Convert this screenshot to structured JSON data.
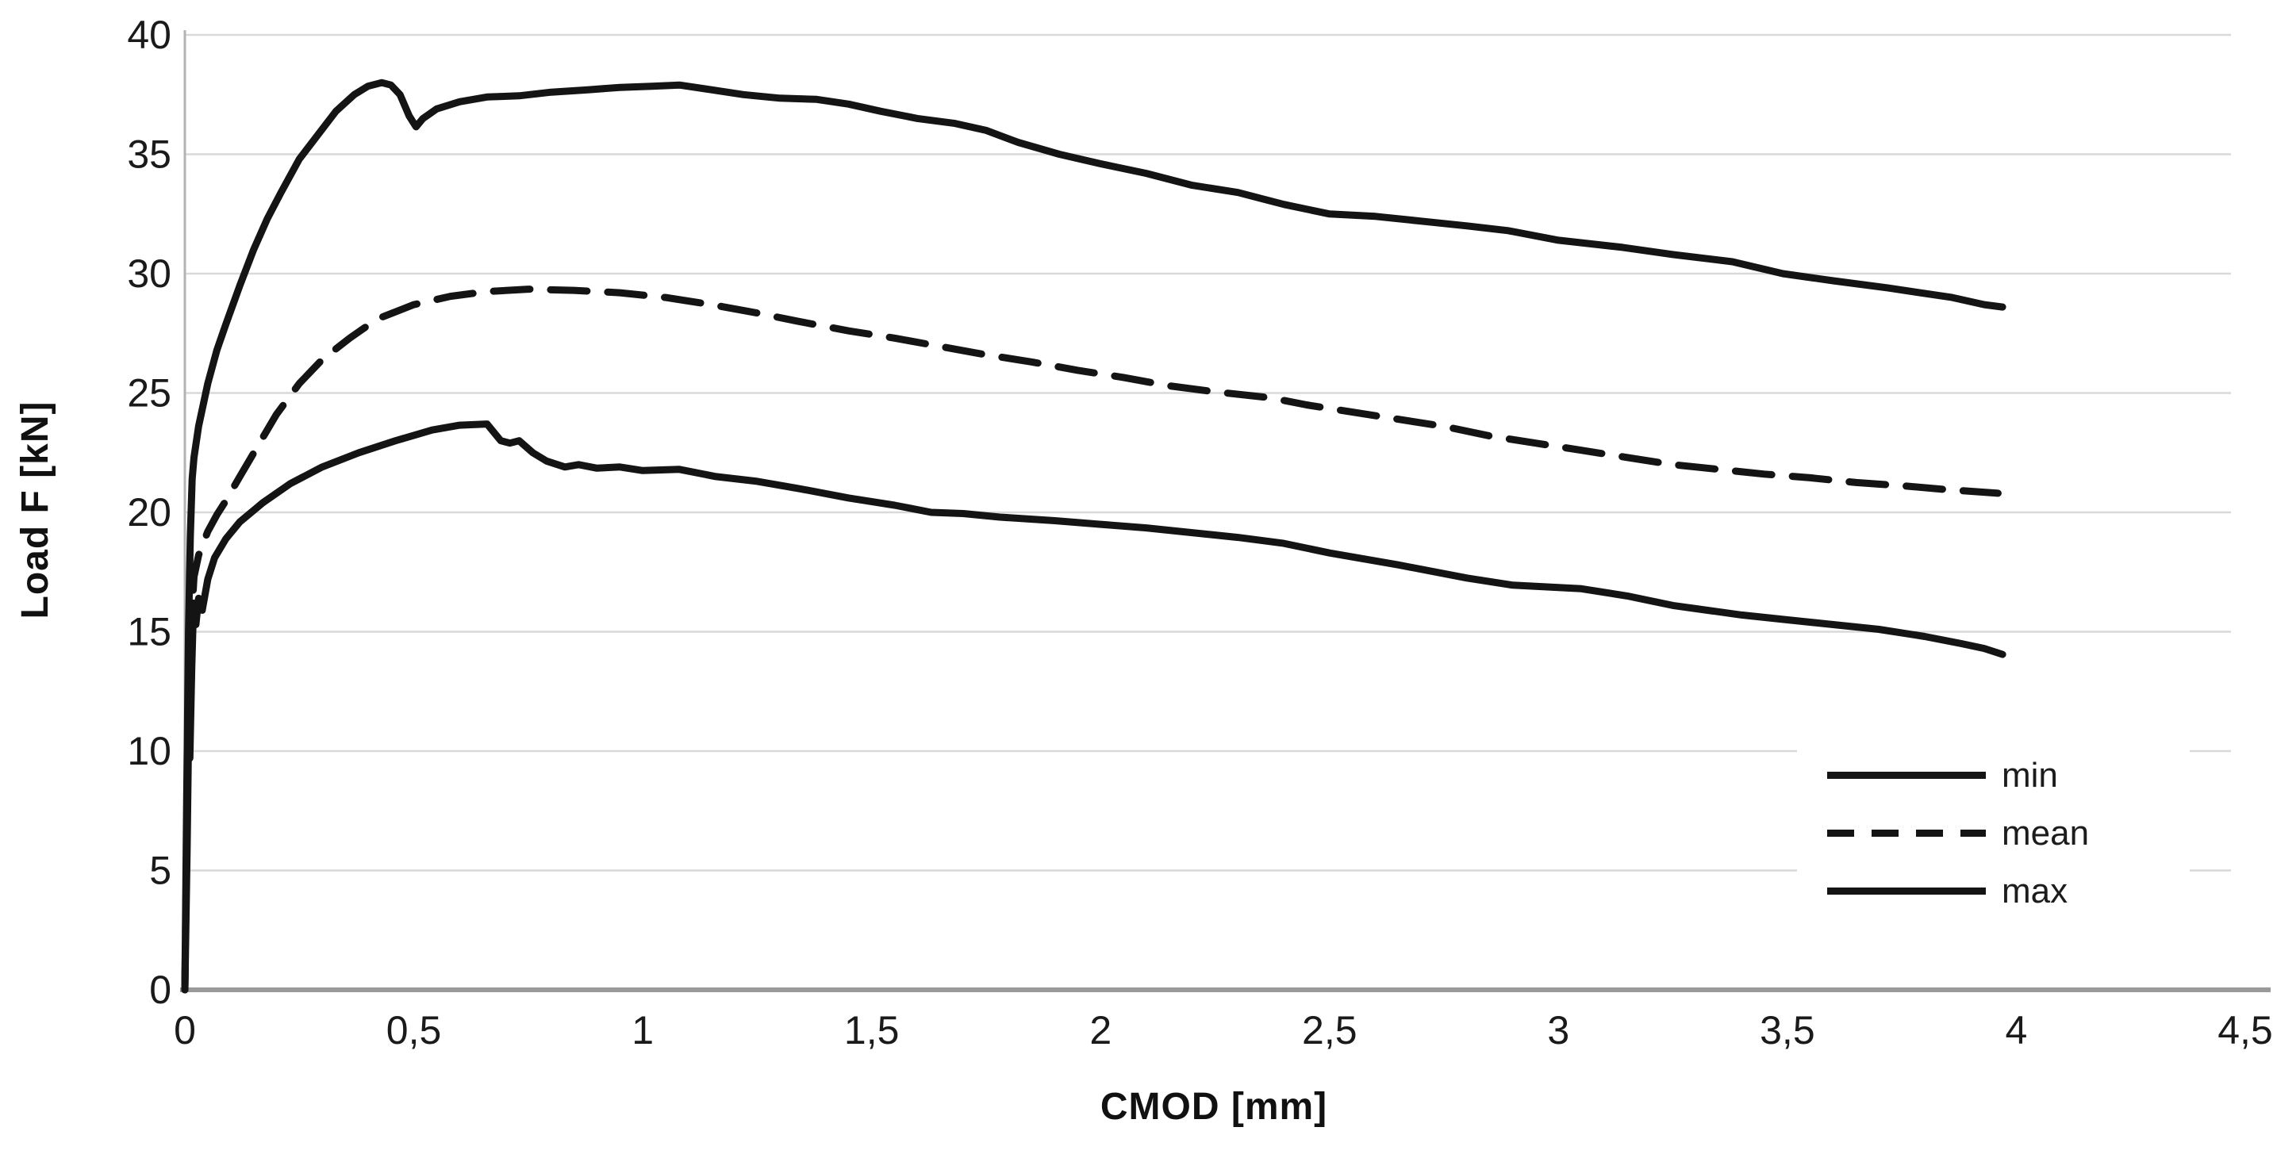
{
  "figure": {
    "x_axis_title": "CMOD [mm]",
    "y_axis_title": "Load F [kN]"
  },
  "legend": {
    "items": [
      {
        "label": "min",
        "line_style": "solid"
      },
      {
        "label": "mean",
        "line_style": "dashed"
      },
      {
        "label": "max",
        "line_style": "solid"
      }
    ]
  },
  "colors": {
    "curve": "#141414",
    "grid": "#d9d9d9",
    "x_axis": "#9a9a9a",
    "y_axis": "#b3b3b3",
    "tick_text": "#1a1a1a"
  },
  "chart_data": {
    "type": "line",
    "title": "",
    "xlabel": "CMOD [mm]",
    "ylabel": "Load F [kN]",
    "xlim": [
      0,
      4.5
    ],
    "ylim": [
      0,
      40
    ],
    "grid": "horizontal",
    "legend_position": "inside-lower-right",
    "x_ticks": [
      0,
      0.5,
      1,
      1.5,
      2,
      2.5,
      3,
      3.5,
      4,
      4.5
    ],
    "x_tick_labels": [
      "0",
      "0,5",
      "1",
      "1,5",
      "2",
      "2,5",
      "3",
      "3,5",
      "4",
      "4,5"
    ],
    "y_ticks": [
      0,
      5,
      10,
      15,
      20,
      25,
      30,
      35,
      40
    ],
    "y_tick_labels": [
      "0",
      "5",
      "10",
      "15",
      "20",
      "25",
      "30",
      "35",
      "40"
    ],
    "series": [
      {
        "name": "min",
        "style": "solid",
        "points": [
          [
            0,
            0
          ],
          [
            0.005,
            6
          ],
          [
            0.008,
            10.5
          ],
          [
            0.011,
            9.7
          ],
          [
            0.015,
            13.5
          ],
          [
            0.019,
            16.2
          ],
          [
            0.024,
            15.3
          ],
          [
            0.03,
            16.4
          ],
          [
            0.038,
            15.9
          ],
          [
            0.05,
            17.2
          ],
          [
            0.065,
            18.1
          ],
          [
            0.09,
            18.9
          ],
          [
            0.12,
            19.6
          ],
          [
            0.17,
            20.4
          ],
          [
            0.23,
            21.2
          ],
          [
            0.3,
            21.9
          ],
          [
            0.38,
            22.5
          ],
          [
            0.46,
            23.0
          ],
          [
            0.54,
            23.45
          ],
          [
            0.6,
            23.65
          ],
          [
            0.66,
            23.7
          ],
          [
            0.69,
            23.0
          ],
          [
            0.71,
            22.9
          ],
          [
            0.73,
            23.0
          ],
          [
            0.76,
            22.5
          ],
          [
            0.79,
            22.15
          ],
          [
            0.83,
            21.9
          ],
          [
            0.86,
            22.0
          ],
          [
            0.9,
            21.85
          ],
          [
            0.95,
            21.9
          ],
          [
            1.0,
            21.75
          ],
          [
            1.08,
            21.8
          ],
          [
            1.16,
            21.5
          ],
          [
            1.25,
            21.3
          ],
          [
            1.34,
            21.0
          ],
          [
            1.45,
            20.6
          ],
          [
            1.55,
            20.3
          ],
          [
            1.63,
            20.0
          ],
          [
            1.7,
            19.95
          ],
          [
            1.78,
            19.8
          ],
          [
            1.9,
            19.65
          ],
          [
            2.0,
            19.5
          ],
          [
            2.1,
            19.35
          ],
          [
            2.2,
            19.15
          ],
          [
            2.3,
            18.95
          ],
          [
            2.4,
            18.7
          ],
          [
            2.5,
            18.3
          ],
          [
            2.65,
            17.8
          ],
          [
            2.8,
            17.25
          ],
          [
            2.9,
            16.95
          ],
          [
            3.0,
            16.85
          ],
          [
            3.05,
            16.8
          ],
          [
            3.15,
            16.5
          ],
          [
            3.25,
            16.1
          ],
          [
            3.4,
            15.7
          ],
          [
            3.5,
            15.5
          ],
          [
            3.6,
            15.3
          ],
          [
            3.7,
            15.1
          ],
          [
            3.8,
            14.8
          ],
          [
            3.88,
            14.5
          ],
          [
            3.93,
            14.3
          ],
          [
            3.97,
            14.05
          ]
        ]
      },
      {
        "name": "mean",
        "style": "dashed",
        "points": [
          [
            0,
            0
          ],
          [
            0.005,
            8
          ],
          [
            0.01,
            14
          ],
          [
            0.02,
            17.3
          ],
          [
            0.03,
            18.2
          ],
          [
            0.05,
            19.2
          ],
          [
            0.07,
            19.9
          ],
          [
            0.09,
            20.5
          ],
          [
            0.12,
            21.5
          ],
          [
            0.16,
            22.8
          ],
          [
            0.2,
            24.1
          ],
          [
            0.25,
            25.4
          ],
          [
            0.3,
            26.4
          ],
          [
            0.36,
            27.3
          ],
          [
            0.42,
            28.1
          ],
          [
            0.5,
            28.7
          ],
          [
            0.58,
            29.05
          ],
          [
            0.66,
            29.25
          ],
          [
            0.75,
            29.35
          ],
          [
            0.85,
            29.3
          ],
          [
            0.95,
            29.2
          ],
          [
            1.05,
            29.0
          ],
          [
            1.15,
            28.7
          ],
          [
            1.25,
            28.35
          ],
          [
            1.34,
            28.0
          ],
          [
            1.45,
            27.6
          ],
          [
            1.55,
            27.3
          ],
          [
            1.65,
            26.95
          ],
          [
            1.75,
            26.6
          ],
          [
            1.85,
            26.3
          ],
          [
            1.95,
            25.95
          ],
          [
            2.05,
            25.65
          ],
          [
            2.15,
            25.3
          ],
          [
            2.25,
            25.05
          ],
          [
            2.37,
            24.8
          ],
          [
            2.45,
            24.5
          ],
          [
            2.55,
            24.2
          ],
          [
            2.65,
            23.9
          ],
          [
            2.75,
            23.6
          ],
          [
            2.85,
            23.2
          ],
          [
            2.95,
            22.9
          ],
          [
            3.05,
            22.6
          ],
          [
            3.15,
            22.3
          ],
          [
            3.25,
            22.0
          ],
          [
            3.35,
            21.8
          ],
          [
            3.45,
            21.6
          ],
          [
            3.55,
            21.45
          ],
          [
            3.65,
            21.25
          ],
          [
            3.76,
            21.1
          ],
          [
            3.85,
            20.95
          ],
          [
            3.96,
            20.8
          ]
        ]
      },
      {
        "name": "max",
        "style": "solid",
        "points": [
          [
            0,
            0
          ],
          [
            0.004,
            8
          ],
          [
            0.008,
            15
          ],
          [
            0.012,
            19
          ],
          [
            0.016,
            21.4
          ],
          [
            0.02,
            22.3
          ],
          [
            0.03,
            23.6
          ],
          [
            0.05,
            25.4
          ],
          [
            0.07,
            26.8
          ],
          [
            0.09,
            27.9
          ],
          [
            0.12,
            29.5
          ],
          [
            0.15,
            31.0
          ],
          [
            0.18,
            32.3
          ],
          [
            0.21,
            33.4
          ],
          [
            0.25,
            34.8
          ],
          [
            0.29,
            35.8
          ],
          [
            0.33,
            36.8
          ],
          [
            0.37,
            37.5
          ],
          [
            0.4,
            37.85
          ],
          [
            0.43,
            38.0
          ],
          [
            0.45,
            37.9
          ],
          [
            0.47,
            37.5
          ],
          [
            0.49,
            36.6
          ],
          [
            0.505,
            36.15
          ],
          [
            0.52,
            36.5
          ],
          [
            0.55,
            36.9
          ],
          [
            0.6,
            37.2
          ],
          [
            0.66,
            37.4
          ],
          [
            0.73,
            37.45
          ],
          [
            0.8,
            37.6
          ],
          [
            0.88,
            37.7
          ],
          [
            0.95,
            37.8
          ],
          [
            1.02,
            37.85
          ],
          [
            1.08,
            37.9
          ],
          [
            1.15,
            37.7
          ],
          [
            1.22,
            37.5
          ],
          [
            1.3,
            37.35
          ],
          [
            1.38,
            37.3
          ],
          [
            1.45,
            37.1
          ],
          [
            1.52,
            36.8
          ],
          [
            1.6,
            36.5
          ],
          [
            1.68,
            36.3
          ],
          [
            1.75,
            36.0
          ],
          [
            1.82,
            35.5
          ],
          [
            1.91,
            35.0
          ],
          [
            2.0,
            34.6
          ],
          [
            2.1,
            34.2
          ],
          [
            2.2,
            33.7
          ],
          [
            2.3,
            33.4
          ],
          [
            2.4,
            32.9
          ],
          [
            2.5,
            32.5
          ],
          [
            2.6,
            32.4
          ],
          [
            2.7,
            32.2
          ],
          [
            2.8,
            32.0
          ],
          [
            2.89,
            31.8
          ],
          [
            3.0,
            31.4
          ],
          [
            3.14,
            31.1
          ],
          [
            3.25,
            30.8
          ],
          [
            3.38,
            30.5
          ],
          [
            3.49,
            30.0
          ],
          [
            3.6,
            29.7
          ],
          [
            3.72,
            29.4
          ],
          [
            3.86,
            29.0
          ],
          [
            3.93,
            28.7
          ],
          [
            3.97,
            28.6
          ]
        ]
      }
    ]
  }
}
